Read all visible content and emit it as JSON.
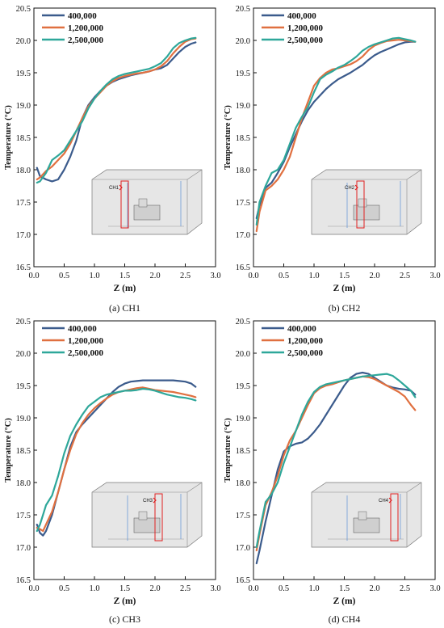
{
  "chart_data": [
    {
      "type": "line",
      "caption": "(a) CH1",
      "inset_label": "CH1",
      "xlabel": "Z (m)",
      "ylabel": "Temperature (°C)",
      "xlim": [
        0.0,
        3.0
      ],
      "ylim": [
        16.5,
        20.5
      ],
      "xticks": [
        "0.0",
        "0.5",
        "1.0",
        "1.5",
        "2.0",
        "2.5",
        "3.0"
      ],
      "yticks": [
        "16.5",
        "17.0",
        "17.5",
        "18.0",
        "18.5",
        "19.0",
        "19.5",
        "20.0",
        "20.5"
      ],
      "legend_position": "top-left",
      "series": [
        {
          "name": "400,000",
          "color": "#3b5b8c",
          "x": [
            0.05,
            0.1,
            0.2,
            0.3,
            0.4,
            0.5,
            0.6,
            0.7,
            0.8,
            0.9,
            1.0,
            1.1,
            1.2,
            1.3,
            1.4,
            1.5,
            1.6,
            1.7,
            1.8,
            1.9,
            2.0,
            2.1,
            2.2,
            2.3,
            2.4,
            2.5,
            2.6,
            2.67
          ],
          "y": [
            18.03,
            17.9,
            17.85,
            17.82,
            17.85,
            18.0,
            18.2,
            18.45,
            18.8,
            19.0,
            19.12,
            19.22,
            19.3,
            19.36,
            19.4,
            19.43,
            19.46,
            19.48,
            19.5,
            19.52,
            19.55,
            19.57,
            19.62,
            19.72,
            19.82,
            19.9,
            19.95,
            19.97
          ]
        },
        {
          "name": "1,200,000",
          "color": "#e07040",
          "x": [
            0.05,
            0.1,
            0.2,
            0.3,
            0.4,
            0.5,
            0.6,
            0.7,
            0.8,
            0.9,
            1.0,
            1.1,
            1.2,
            1.3,
            1.4,
            1.5,
            1.6,
            1.7,
            1.8,
            1.9,
            2.0,
            2.1,
            2.2,
            2.3,
            2.4,
            2.5,
            2.6,
            2.67
          ],
          "y": [
            17.85,
            17.88,
            17.98,
            18.05,
            18.15,
            18.25,
            18.4,
            18.6,
            18.8,
            18.98,
            19.1,
            19.2,
            19.3,
            19.37,
            19.42,
            19.45,
            19.47,
            19.49,
            19.5,
            19.52,
            19.55,
            19.6,
            19.68,
            19.8,
            19.9,
            19.98,
            20.02,
            20.03
          ]
        },
        {
          "name": "2,500,000",
          "color": "#2ea79a",
          "x": [
            0.05,
            0.1,
            0.2,
            0.3,
            0.4,
            0.5,
            0.6,
            0.7,
            0.8,
            0.9,
            1.0,
            1.1,
            1.2,
            1.3,
            1.4,
            1.5,
            1.6,
            1.7,
            1.8,
            1.9,
            2.0,
            2.1,
            2.2,
            2.3,
            2.4,
            2.5,
            2.6,
            2.67
          ],
          "y": [
            17.8,
            17.82,
            17.95,
            18.15,
            18.22,
            18.3,
            18.45,
            18.6,
            18.75,
            18.95,
            19.1,
            19.22,
            19.32,
            19.4,
            19.45,
            19.48,
            19.5,
            19.52,
            19.54,
            19.56,
            19.6,
            19.65,
            19.75,
            19.88,
            19.96,
            20.0,
            20.03,
            20.04
          ]
        }
      ]
    },
    {
      "type": "line",
      "caption": "(b) CH2",
      "inset_label": "CH2",
      "xlabel": "Z (m)",
      "ylabel": "Temperature (°C)",
      "xlim": [
        0.0,
        3.0
      ],
      "ylim": [
        16.5,
        20.5
      ],
      "xticks": [
        "0.0",
        "0.5",
        "1.0",
        "1.5",
        "2.0",
        "2.5",
        "3.0"
      ],
      "yticks": [
        "16.5",
        "17.0",
        "17.5",
        "18.0",
        "18.5",
        "19.0",
        "19.5",
        "20.0",
        "20.5"
      ],
      "legend_position": "top-left",
      "series": [
        {
          "name": "400,000",
          "color": "#3b5b8c",
          "x": [
            0.05,
            0.1,
            0.2,
            0.3,
            0.4,
            0.5,
            0.6,
            0.7,
            0.8,
            0.9,
            1.0,
            1.1,
            1.2,
            1.3,
            1.4,
            1.5,
            1.6,
            1.7,
            1.8,
            1.9,
            2.0,
            2.1,
            2.2,
            2.3,
            2.4,
            2.5,
            2.6,
            2.67
          ],
          "y": [
            17.25,
            17.45,
            17.72,
            17.8,
            17.95,
            18.12,
            18.35,
            18.55,
            18.75,
            18.92,
            19.05,
            19.15,
            19.25,
            19.33,
            19.4,
            19.45,
            19.5,
            19.56,
            19.62,
            19.7,
            19.77,
            19.82,
            19.86,
            19.9,
            19.94,
            19.97,
            19.98,
            19.98
          ]
        },
        {
          "name": "1,200,000",
          "color": "#e07040",
          "x": [
            0.05,
            0.1,
            0.2,
            0.3,
            0.4,
            0.5,
            0.6,
            0.7,
            0.8,
            0.9,
            1.0,
            1.1,
            1.2,
            1.3,
            1.4,
            1.5,
            1.6,
            1.7,
            1.8,
            1.9,
            2.0,
            2.1,
            2.2,
            2.3,
            2.4,
            2.5,
            2.6,
            2.67
          ],
          "y": [
            17.05,
            17.35,
            17.68,
            17.75,
            17.85,
            18.0,
            18.2,
            18.5,
            18.8,
            19.05,
            19.3,
            19.42,
            19.5,
            19.55,
            19.57,
            19.6,
            19.63,
            19.68,
            19.75,
            19.85,
            19.92,
            19.96,
            19.99,
            20.0,
            20.01,
            20.0,
            19.99,
            19.98
          ]
        },
        {
          "name": "2,500,000",
          "color": "#2ea79a",
          "x": [
            0.05,
            0.1,
            0.2,
            0.3,
            0.4,
            0.5,
            0.6,
            0.7,
            0.8,
            0.9,
            1.0,
            1.1,
            1.2,
            1.3,
            1.4,
            1.5,
            1.6,
            1.7,
            1.8,
            1.9,
            2.0,
            2.1,
            2.2,
            2.3,
            2.4,
            2.5,
            2.6,
            2.67
          ],
          "y": [
            17.15,
            17.5,
            17.75,
            17.95,
            18.0,
            18.15,
            18.4,
            18.65,
            18.82,
            18.97,
            19.2,
            19.4,
            19.47,
            19.52,
            19.58,
            19.62,
            19.68,
            19.75,
            19.84,
            19.9,
            19.94,
            19.97,
            20.0,
            20.03,
            20.04,
            20.02,
            20.0,
            19.98
          ]
        }
      ]
    },
    {
      "type": "line",
      "caption": "(c) CH3",
      "inset_label": "CH3",
      "xlabel": "Z (m)",
      "ylabel": "Temperature (°C)",
      "xlim": [
        0.0,
        3.0
      ],
      "ylim": [
        16.5,
        20.5
      ],
      "xticks": [
        "0.0",
        "0.5",
        "1.0",
        "1.5",
        "2.0",
        "2.5",
        "3.0"
      ],
      "yticks": [
        "16.5",
        "17.0",
        "17.5",
        "18.0",
        "18.5",
        "19.0",
        "19.5",
        "20.0",
        "20.5"
      ],
      "legend_position": "top-left",
      "series": [
        {
          "name": "400,000",
          "color": "#3b5b8c",
          "x": [
            0.05,
            0.1,
            0.15,
            0.2,
            0.3,
            0.4,
            0.5,
            0.6,
            0.7,
            0.8,
            0.9,
            1.0,
            1.1,
            1.2,
            1.3,
            1.4,
            1.5,
            1.6,
            1.7,
            1.8,
            1.9,
            2.0,
            2.1,
            2.2,
            2.3,
            2.4,
            2.5,
            2.6,
            2.67
          ],
          "y": [
            17.35,
            17.22,
            17.18,
            17.25,
            17.5,
            17.85,
            18.2,
            18.55,
            18.78,
            18.9,
            19.0,
            19.1,
            19.2,
            19.3,
            19.4,
            19.48,
            19.53,
            19.56,
            19.57,
            19.58,
            19.58,
            19.58,
            19.58,
            19.58,
            19.58,
            19.57,
            19.56,
            19.53,
            19.48
          ]
        },
        {
          "name": "1,200,000",
          "color": "#e07040",
          "x": [
            0.05,
            0.1,
            0.15,
            0.2,
            0.3,
            0.4,
            0.5,
            0.6,
            0.7,
            0.8,
            0.9,
            1.0,
            1.1,
            1.2,
            1.3,
            1.4,
            1.5,
            1.6,
            1.7,
            1.8,
            1.9,
            2.0,
            2.1,
            2.2,
            2.3,
            2.4,
            2.5,
            2.6,
            2.67
          ],
          "y": [
            17.3,
            17.28,
            17.25,
            17.35,
            17.55,
            17.85,
            18.2,
            18.5,
            18.75,
            18.92,
            19.05,
            19.15,
            19.23,
            19.3,
            19.36,
            19.4,
            19.42,
            19.44,
            19.46,
            19.47,
            19.45,
            19.43,
            19.42,
            19.41,
            19.4,
            19.38,
            19.36,
            19.34,
            19.32
          ]
        },
        {
          "name": "2,500,000",
          "color": "#2ea79a",
          "x": [
            0.05,
            0.1,
            0.15,
            0.2,
            0.3,
            0.4,
            0.5,
            0.6,
            0.7,
            0.8,
            0.9,
            1.0,
            1.1,
            1.2,
            1.3,
            1.4,
            1.5,
            1.6,
            1.7,
            1.8,
            1.9,
            2.0,
            2.1,
            2.2,
            2.3,
            2.4,
            2.5,
            2.6,
            2.67
          ],
          "y": [
            17.25,
            17.35,
            17.5,
            17.65,
            17.8,
            18.1,
            18.45,
            18.72,
            18.9,
            19.05,
            19.18,
            19.25,
            19.32,
            19.36,
            19.38,
            19.4,
            19.42,
            19.42,
            19.43,
            19.45,
            19.44,
            19.42,
            19.39,
            19.36,
            19.34,
            19.32,
            19.31,
            19.29,
            19.27
          ]
        }
      ]
    },
    {
      "type": "line",
      "caption": "(d) CH4",
      "inset_label": "CH4",
      "xlabel": "Z (m)",
      "ylabel": "Temperature (°C)",
      "xlim": [
        0.0,
        3.0
      ],
      "ylim": [
        16.5,
        20.5
      ],
      "xticks": [
        "0.0",
        "0.5",
        "1.0",
        "1.5",
        "2.0",
        "2.5",
        "3.0"
      ],
      "yticks": [
        "16.5",
        "17.0",
        "17.5",
        "18.0",
        "18.5",
        "19.0",
        "19.5",
        "20.0",
        "20.5"
      ],
      "legend_position": "top-left",
      "series": [
        {
          "name": "400,000",
          "color": "#3b5b8c",
          "x": [
            0.05,
            0.1,
            0.2,
            0.3,
            0.4,
            0.5,
            0.6,
            0.7,
            0.8,
            0.9,
            1.0,
            1.1,
            1.2,
            1.3,
            1.4,
            1.5,
            1.6,
            1.7,
            1.8,
            1.9,
            2.0,
            2.1,
            2.2,
            2.3,
            2.4,
            2.5,
            2.6,
            2.67
          ],
          "y": [
            16.75,
            16.95,
            17.4,
            17.8,
            18.2,
            18.48,
            18.56,
            18.6,
            18.62,
            18.68,
            18.78,
            18.9,
            19.05,
            19.2,
            19.35,
            19.5,
            19.62,
            19.68,
            19.7,
            19.68,
            19.62,
            19.56,
            19.5,
            19.47,
            19.45,
            19.44,
            19.42,
            19.36
          ]
        },
        {
          "name": "1,200,000",
          "color": "#e07040",
          "x": [
            0.05,
            0.1,
            0.2,
            0.3,
            0.4,
            0.5,
            0.6,
            0.7,
            0.8,
            0.9,
            1.0,
            1.1,
            1.2,
            1.3,
            1.4,
            1.5,
            1.6,
            1.7,
            1.8,
            1.9,
            2.0,
            2.1,
            2.2,
            2.3,
            2.4,
            2.5,
            2.6,
            2.67
          ],
          "y": [
            16.95,
            17.2,
            17.65,
            17.85,
            18.1,
            18.42,
            18.65,
            18.8,
            19.0,
            19.2,
            19.38,
            19.46,
            19.5,
            19.52,
            19.55,
            19.58,
            19.6,
            19.62,
            19.64,
            19.63,
            19.6,
            19.55,
            19.5,
            19.45,
            19.4,
            19.33,
            19.2,
            19.12
          ]
        },
        {
          "name": "2,500,000",
          "color": "#2ea79a",
          "x": [
            0.05,
            0.1,
            0.2,
            0.3,
            0.4,
            0.5,
            0.6,
            0.7,
            0.8,
            0.9,
            1.0,
            1.1,
            1.2,
            1.3,
            1.4,
            1.5,
            1.6,
            1.7,
            1.8,
            1.9,
            2.0,
            2.1,
            2.2,
            2.3,
            2.4,
            2.5,
            2.6,
            2.67
          ],
          "y": [
            17.0,
            17.25,
            17.7,
            17.82,
            18.0,
            18.3,
            18.55,
            18.8,
            19.05,
            19.25,
            19.4,
            19.48,
            19.52,
            19.54,
            19.56,
            19.58,
            19.6,
            19.62,
            19.64,
            19.65,
            19.66,
            19.67,
            19.68,
            19.65,
            19.58,
            19.5,
            19.42,
            19.32
          ]
        }
      ]
    }
  ]
}
